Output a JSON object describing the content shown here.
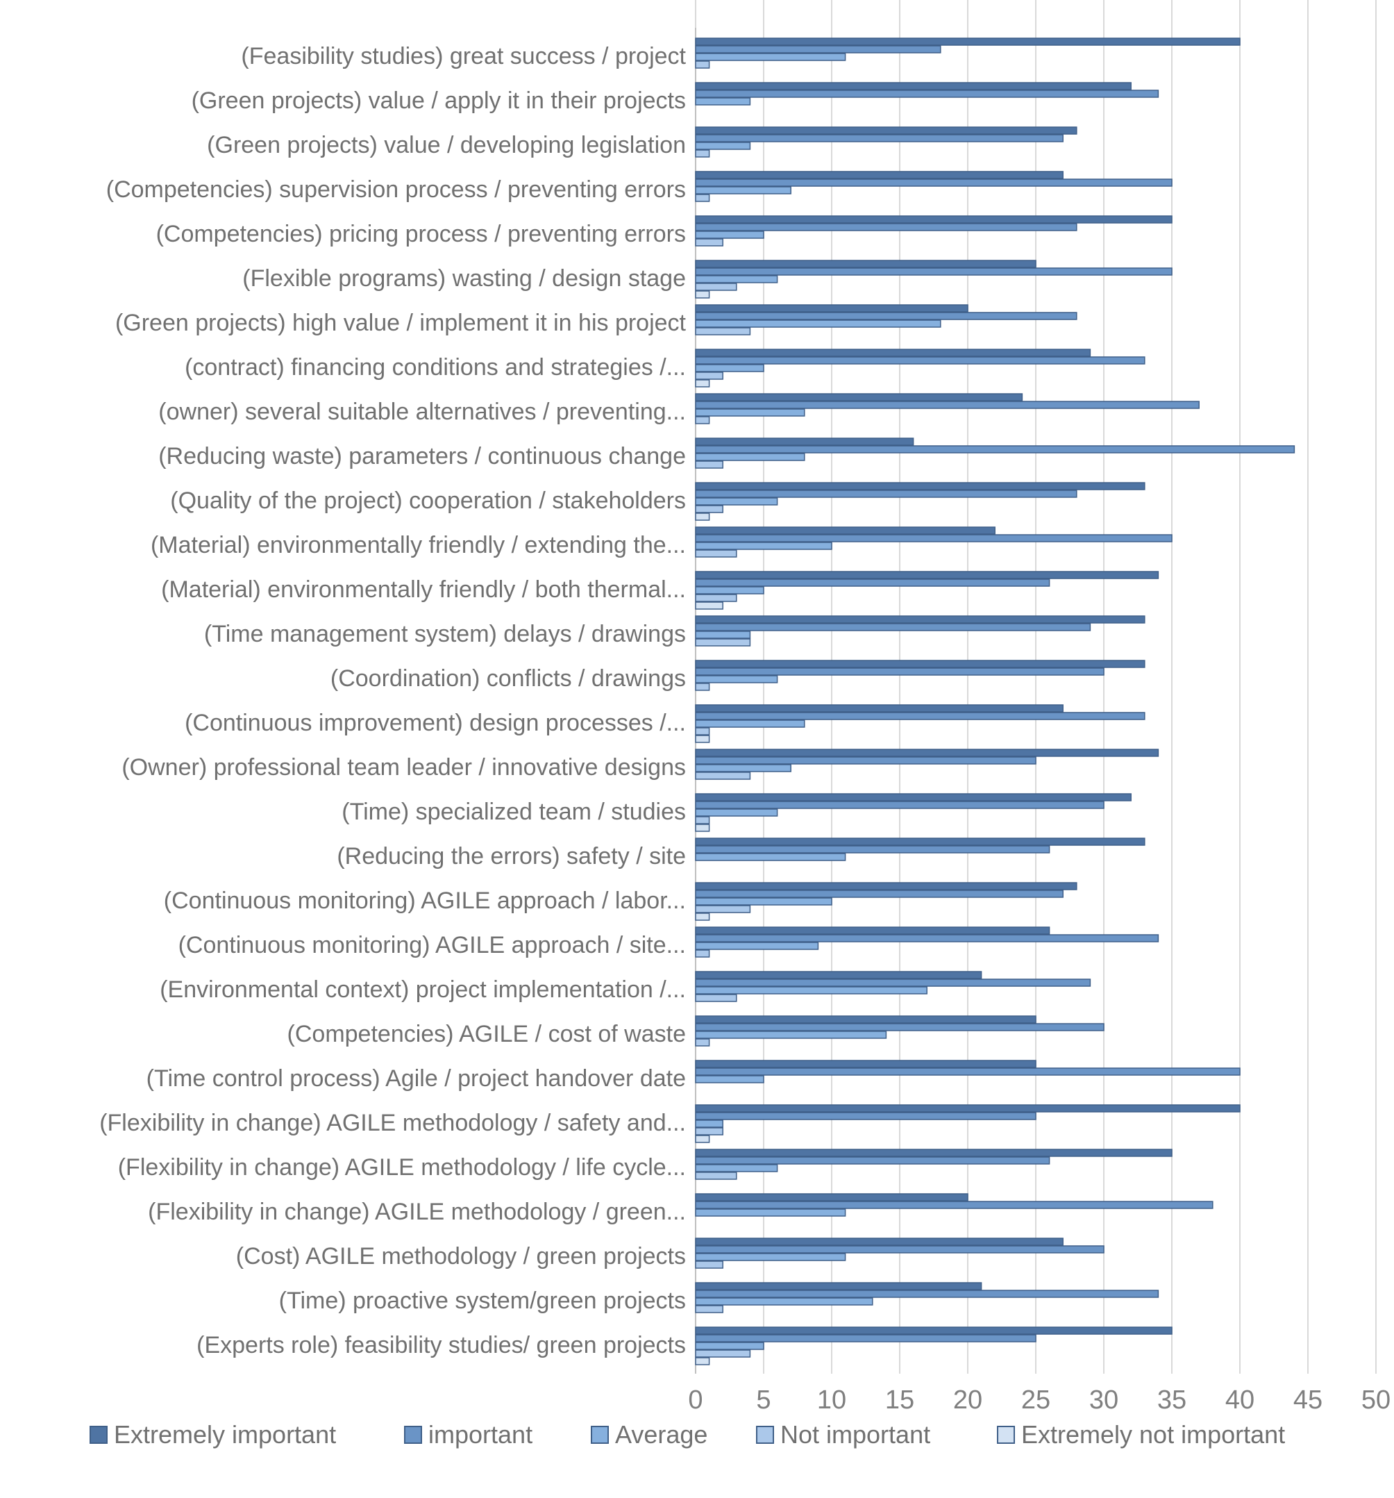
{
  "chart_data": {
    "type": "bar",
    "orientation": "horizontal",
    "title": "",
    "xlabel": "",
    "ylabel": "",
    "xlim": [
      0,
      50
    ],
    "x_ticks": [
      0,
      5,
      10,
      15,
      20,
      25,
      30,
      35,
      40,
      45,
      50
    ],
    "grid": true,
    "legend_position": "bottom",
    "categories": [
      "(Feasibility studies) great success / project",
      "(Green projects)  value / apply it in their projects",
      "(Green projects)  value / developing legislation",
      "(Competencies) supervision process / preventing errors",
      "(Competencies) pricing process / preventing errors",
      "(Flexible programs) wasting / design stage",
      "(Green projects) high value / implement it in his project",
      "(contract) financing conditions and strategies /...",
      "(owner) several suitable alternatives / preventing...",
      "(Reducing waste) parameters / continuous change",
      "(Quality of the project) cooperation / stakeholders",
      "(Material) environmentally friendly / extending the...",
      "(Material) environmentally friendly / both thermal...",
      "(Time management system) delays / drawings",
      "(Coordination) conflicts / drawings",
      "(Continuous improvement) design processes /...",
      "(Owner) professional team leader / innovative designs",
      "(Time) specialized team / studies",
      "(Reducing the errors) safety / site",
      "(Continuous monitoring) AGILE approach / labor...",
      "(Continuous monitoring) AGILE approach / site...",
      "(Environmental context) project implementation /...",
      "(Competencies) AGILE /  cost of waste",
      "(Time control process) Agile / project handover date",
      "(Flexibility in change) AGILE methodology / safety and...",
      "(Flexibility in change) AGILE methodology / life cycle...",
      "(Flexibility in change) AGILE methodology / green...",
      "(Cost) AGILE methodology / green projects",
      "(Time) proactive system/green projects",
      "(Experts role) feasibility studies/ green projects"
    ],
    "series": [
      {
        "name": "Extremely important",
        "color": "#4f74a3",
        "values": [
          40,
          32,
          28,
          27,
          35,
          25,
          20,
          29,
          24,
          16,
          33,
          22,
          34,
          33,
          33,
          27,
          34,
          32,
          33,
          28,
          26,
          21,
          25,
          25,
          40,
          35,
          20,
          27,
          21,
          35
        ]
      },
      {
        "name": "important",
        "color": "#6a94c6",
        "values": [
          18,
          34,
          27,
          35,
          28,
          35,
          28,
          33,
          37,
          44,
          28,
          35,
          26,
          29,
          30,
          33,
          25,
          30,
          26,
          27,
          34,
          29,
          30,
          40,
          25,
          26,
          38,
          30,
          34,
          25
        ]
      },
      {
        "name": "Average",
        "color": "#86b0de",
        "values": [
          11,
          4,
          4,
          7,
          5,
          6,
          18,
          5,
          8,
          8,
          6,
          10,
          5,
          4,
          6,
          8,
          7,
          6,
          11,
          10,
          9,
          17,
          14,
          5,
          2,
          6,
          11,
          11,
          13,
          5
        ]
      },
      {
        "name": "Not important",
        "color": "#abc8ea",
        "values": [
          1,
          0,
          1,
          1,
          2,
          3,
          4,
          2,
          1,
          2,
          2,
          3,
          3,
          4,
          1,
          1,
          4,
          1,
          0,
          4,
          1,
          3,
          1,
          0,
          2,
          3,
          0,
          2,
          2,
          4
        ]
      },
      {
        "name": "Extremely not important",
        "color": "#d3e2f3",
        "values": [
          0,
          0,
          0,
          0,
          0,
          1,
          0,
          1,
          0,
          0,
          1,
          0,
          2,
          0,
          0,
          1,
          0,
          1,
          0,
          1,
          0,
          0,
          0,
          0,
          1,
          0,
          0,
          0,
          0,
          1
        ]
      }
    ]
  }
}
